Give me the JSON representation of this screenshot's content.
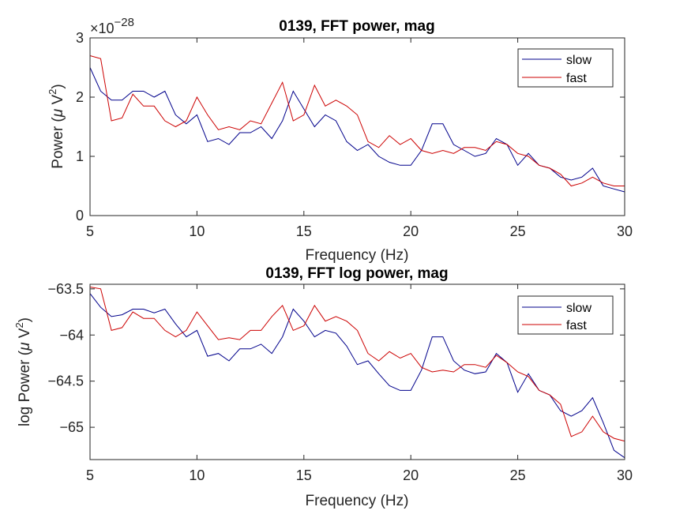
{
  "chart_data": [
    {
      "type": "line",
      "title": "0139, FFT power, mag",
      "xlabel": "Frequency (Hz)",
      "ylabel": "Power (μ V²)",
      "ylabel_parts": {
        "pre": "Power (",
        "mu": "μ",
        "mid": " V",
        "sup": "2",
        "post": ")"
      },
      "exponent_label": {
        "base": "×10",
        "power": "−28"
      },
      "xlim": [
        5,
        30
      ],
      "ylim": [
        0,
        3
      ],
      "xticks": [
        "5",
        "10",
        "15",
        "20",
        "25",
        "30"
      ],
      "yticks": [
        "0",
        "1",
        "2",
        "3"
      ],
      "legend_position": "top-right",
      "series": [
        {
          "name": "slow",
          "color": "#00008b",
          "x": [
            5,
            5.5,
            6,
            6.5,
            7,
            7.5,
            8,
            8.5,
            9,
            9.5,
            10,
            10.5,
            11,
            11.5,
            12,
            12.5,
            13,
            13.5,
            14,
            14.5,
            15,
            15.5,
            16,
            16.5,
            17,
            17.5,
            18,
            18.5,
            19,
            19.5,
            20,
            20.5,
            21,
            21.5,
            22,
            22.5,
            23,
            23.5,
            24,
            24.5,
            25,
            25.5,
            26,
            26.5,
            27,
            27.5,
            28,
            28.5,
            29,
            29.5,
            30
          ],
          "values": [
            2.5,
            2.1,
            1.95,
            1.95,
            2.1,
            2.1,
            2.0,
            2.1,
            1.7,
            1.55,
            1.7,
            1.25,
            1.3,
            1.2,
            1.4,
            1.4,
            1.5,
            1.3,
            1.6,
            2.1,
            1.8,
            1.5,
            1.7,
            1.6,
            1.25,
            1.1,
            1.2,
            1.0,
            0.9,
            0.85,
            0.85,
            1.1,
            1.55,
            1.55,
            1.2,
            1.1,
            1.0,
            1.05,
            1.3,
            1.2,
            0.85,
            1.05,
            0.85,
            0.8,
            0.65,
            0.6,
            0.65,
            0.8,
            0.5,
            0.45,
            0.4
          ]
        },
        {
          "name": "fast",
          "color": "#cc0000",
          "x": [
            5,
            5.5,
            6,
            6.5,
            7,
            7.5,
            8,
            8.5,
            9,
            9.5,
            10,
            10.5,
            11,
            11.5,
            12,
            12.5,
            13,
            13.5,
            14,
            14.5,
            15,
            15.5,
            16,
            16.5,
            17,
            17.5,
            18,
            18.5,
            19,
            19.5,
            20,
            20.5,
            21,
            21.5,
            22,
            22.5,
            23,
            23.5,
            24,
            24.5,
            25,
            25.5,
            26,
            26.5,
            27,
            27.5,
            28,
            28.5,
            29,
            29.5,
            30
          ],
          "values": [
            2.7,
            2.65,
            1.6,
            1.65,
            2.05,
            1.85,
            1.85,
            1.6,
            1.5,
            1.6,
            2.0,
            1.7,
            1.45,
            1.5,
            1.45,
            1.6,
            1.55,
            1.9,
            2.25,
            1.6,
            1.7,
            2.2,
            1.85,
            1.95,
            1.85,
            1.7,
            1.25,
            1.15,
            1.35,
            1.2,
            1.3,
            1.1,
            1.05,
            1.1,
            1.05,
            1.15,
            1.15,
            1.1,
            1.25,
            1.2,
            1.05,
            1.0,
            0.85,
            0.8,
            0.7,
            0.5,
            0.55,
            0.65,
            0.55,
            0.5,
            0.5
          ]
        }
      ]
    },
    {
      "type": "line",
      "title": "0139, FFT log power, mag",
      "xlabel": "Frequency (Hz)",
      "ylabel": "log Power (μ V²)",
      "ylabel_parts": {
        "pre": "log Power (",
        "mu": "μ",
        "mid": " V",
        "sup": "2",
        "post": ")"
      },
      "xlim": [
        5,
        30
      ],
      "ylim": [
        -65.35,
        -63.45
      ],
      "xticks": [
        "5",
        "10",
        "15",
        "20",
        "25",
        "30"
      ],
      "ytick_values": [
        -65,
        -64.5,
        -64,
        -63.5
      ],
      "yticks": [
        "−65",
        "−64.5",
        "−64",
        "−63.5"
      ],
      "legend_position": "top-right",
      "series": [
        {
          "name": "slow",
          "color": "#00008b",
          "x": [
            5,
            5.5,
            6,
            6.5,
            7,
            7.5,
            8,
            8.5,
            9,
            9.5,
            10,
            10.5,
            11,
            11.5,
            12,
            12.5,
            13,
            13.5,
            14,
            14.5,
            15,
            15.5,
            16,
            16.5,
            17,
            17.5,
            18,
            18.5,
            19,
            19.5,
            20,
            20.5,
            21,
            21.5,
            22,
            22.5,
            23,
            23.5,
            24,
            24.5,
            25,
            25.5,
            26,
            26.5,
            27,
            27.5,
            28,
            28.5,
            29,
            29.5,
            30
          ],
          "values": [
            -63.55,
            -63.7,
            -63.8,
            -63.78,
            -63.72,
            -63.72,
            -63.76,
            -63.72,
            -63.88,
            -64.02,
            -63.95,
            -64.23,
            -64.2,
            -64.28,
            -64.15,
            -64.15,
            -64.1,
            -64.2,
            -64.02,
            -63.72,
            -63.85,
            -64.02,
            -63.95,
            -63.98,
            -64.12,
            -64.32,
            -64.28,
            -64.42,
            -64.55,
            -64.6,
            -64.6,
            -64.38,
            -64.02,
            -64.02,
            -64.28,
            -64.38,
            -64.42,
            -64.4,
            -64.2,
            -64.3,
            -64.62,
            -64.42,
            -64.6,
            -64.65,
            -64.82,
            -64.88,
            -64.82,
            -64.68,
            -64.95,
            -65.25,
            -65.33
          ]
        },
        {
          "name": "fast",
          "color": "#cc0000",
          "x": [
            5,
            5.5,
            6,
            6.5,
            7,
            7.5,
            8,
            8.5,
            9,
            9.5,
            10,
            10.5,
            11,
            11.5,
            12,
            12.5,
            13,
            13.5,
            14,
            14.5,
            15,
            15.5,
            16,
            16.5,
            17,
            17.5,
            18,
            18.5,
            19,
            19.5,
            20,
            20.5,
            21,
            21.5,
            22,
            22.5,
            23,
            23.5,
            24,
            24.5,
            25,
            25.5,
            26,
            26.5,
            27,
            27.5,
            28,
            28.5,
            29,
            29.5,
            30
          ],
          "values": [
            -63.48,
            -63.5,
            -63.95,
            -63.92,
            -63.75,
            -63.82,
            -63.82,
            -63.95,
            -64.02,
            -63.95,
            -63.75,
            -63.9,
            -64.05,
            -64.03,
            -64.05,
            -63.95,
            -63.95,
            -63.8,
            -63.68,
            -63.95,
            -63.9,
            -63.68,
            -63.85,
            -63.8,
            -63.85,
            -63.95,
            -64.2,
            -64.28,
            -64.18,
            -64.25,
            -64.2,
            -64.35,
            -64.4,
            -64.38,
            -64.4,
            -64.32,
            -64.32,
            -64.35,
            -64.22,
            -64.3,
            -64.4,
            -64.45,
            -64.6,
            -64.65,
            -64.75,
            -65.1,
            -65.05,
            -64.88,
            -65.05,
            -65.12,
            -65.15
          ]
        }
      ]
    }
  ]
}
